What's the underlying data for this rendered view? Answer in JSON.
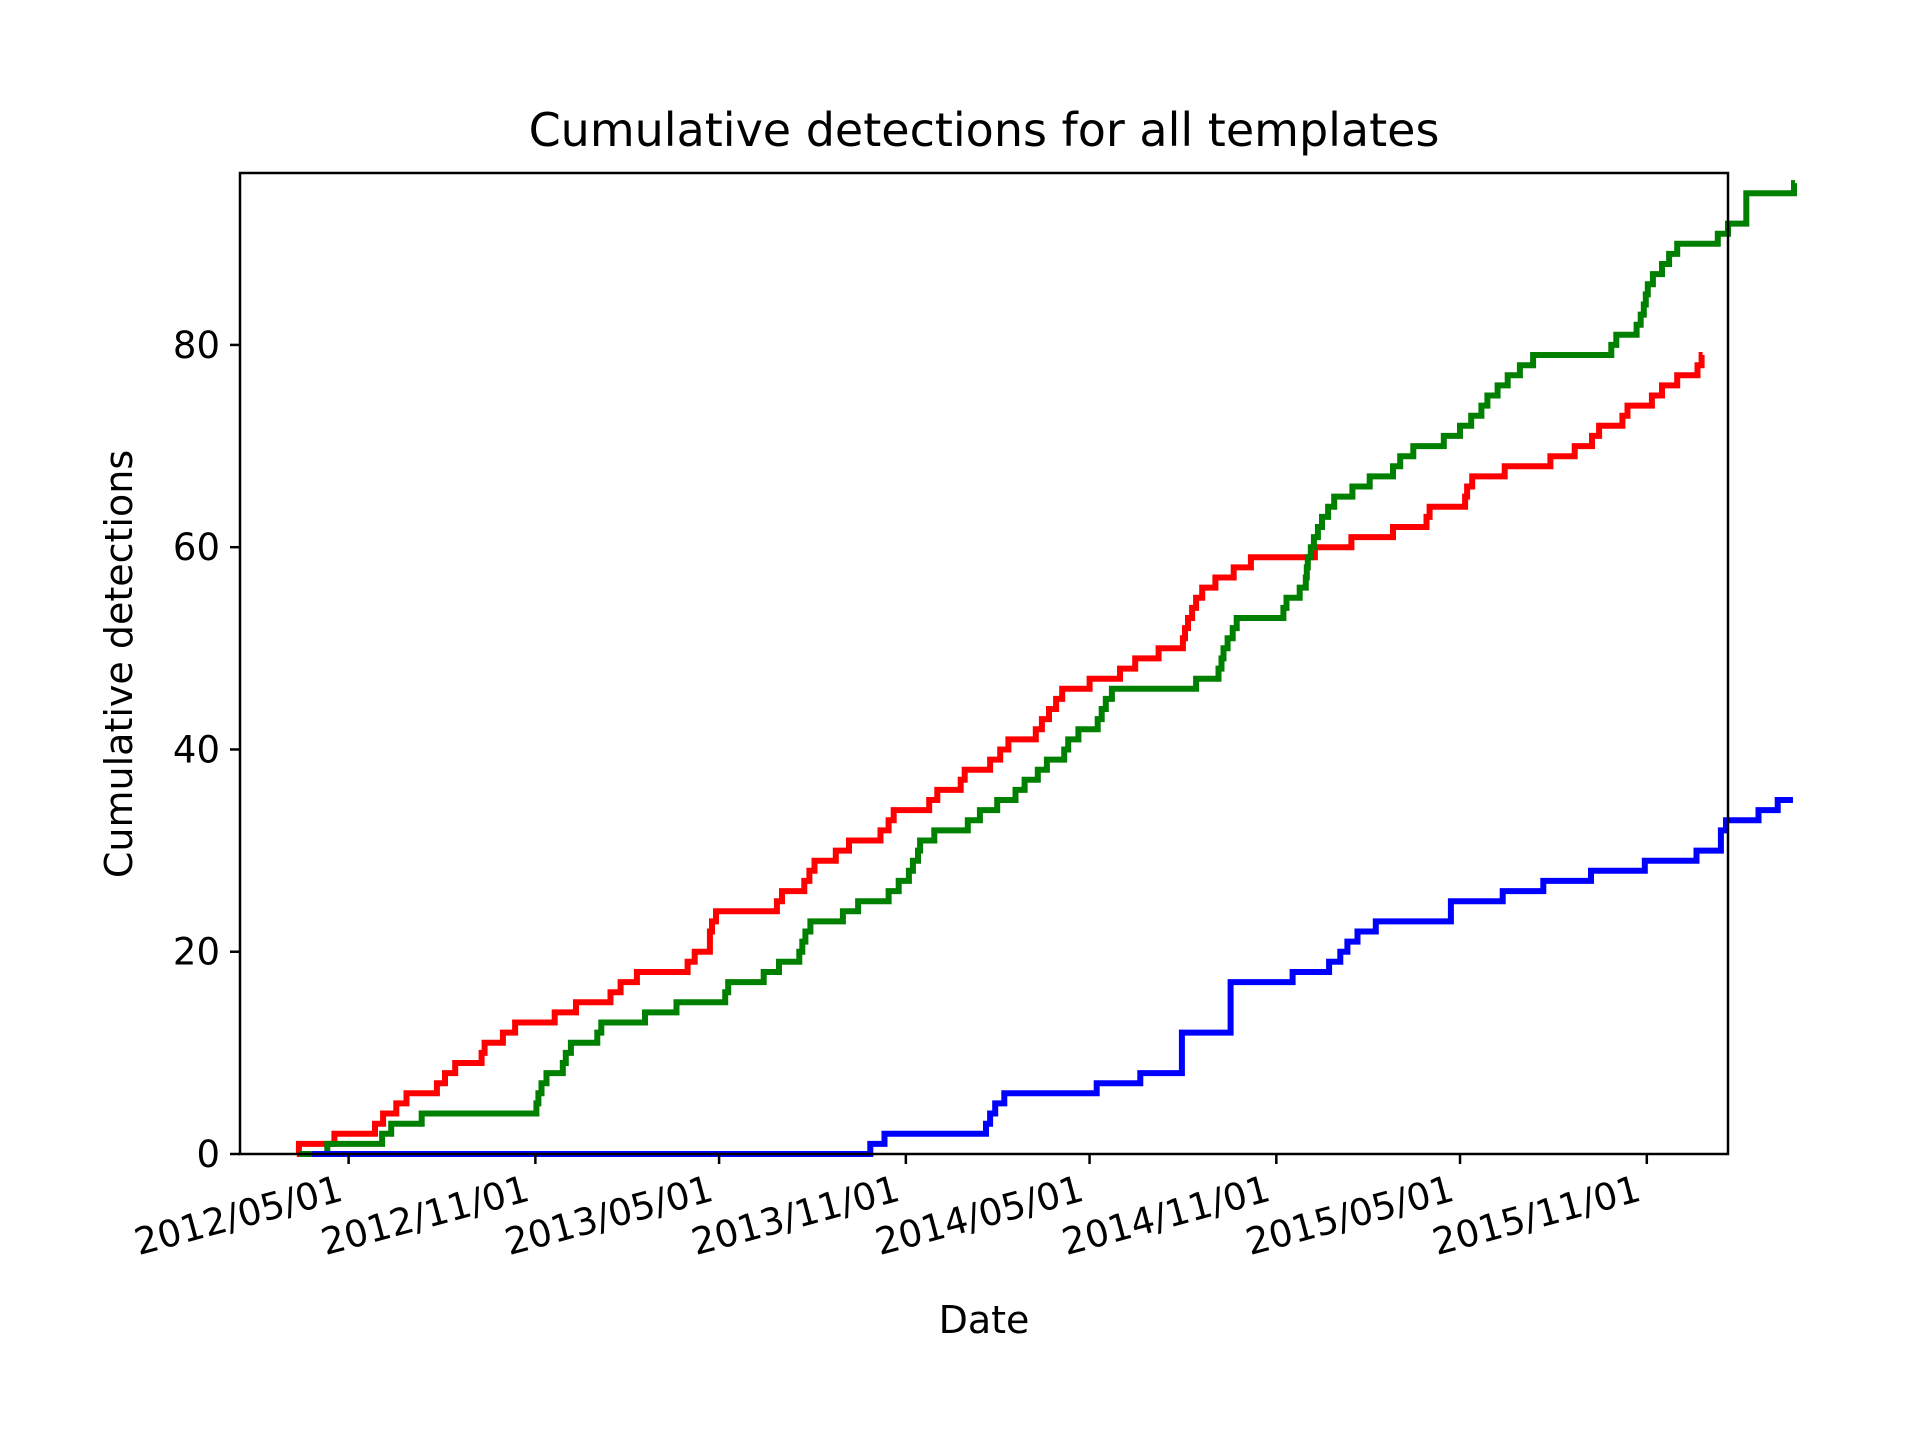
{
  "chart_data": {
    "type": "line",
    "title": "Cumulative detections for all templates",
    "xlabel": "Date",
    "ylabel": "Cumulative detections",
    "x_axis_type": "date",
    "x_tick_labels": [
      "2012/05/01",
      "2012/11/01",
      "2013/05/01",
      "2013/11/01",
      "2014/05/01",
      "2014/11/01",
      "2015/05/01",
      "2015/11/01"
    ],
    "x_ticks": [
      "2012-05-01",
      "2012-11-01",
      "2013-05-01",
      "2013-11-01",
      "2014-05-01",
      "2014-11-01",
      "2015-05-01",
      "2015-11-01"
    ],
    "xlim": [
      "2012-01-15",
      "2016-01-20"
    ],
    "y_ticks": [
      0,
      20,
      40,
      60,
      80
    ],
    "ylim": [
      0,
      97
    ],
    "grid": false,
    "legend": false,
    "step": true,
    "series": [
      {
        "color": "#ff0000",
        "points": [
          [
            "2012-03-11",
            0
          ],
          [
            "2012-03-13",
            1
          ],
          [
            "2012-04-17",
            2
          ],
          [
            "2012-05-27",
            3
          ],
          [
            "2012-06-04",
            4
          ],
          [
            "2012-06-17",
            5
          ],
          [
            "2012-06-27",
            6
          ],
          [
            "2012-07-27",
            7
          ],
          [
            "2012-08-04",
            8
          ],
          [
            "2012-08-14",
            9
          ],
          [
            "2012-09-09",
            10
          ],
          [
            "2012-09-12",
            11
          ],
          [
            "2012-09-30",
            12
          ],
          [
            "2012-10-12",
            13
          ],
          [
            "2012-11-20",
            14
          ],
          [
            "2012-12-11",
            15
          ],
          [
            "2013-01-14",
            16
          ],
          [
            "2013-01-24",
            17
          ],
          [
            "2013-02-09",
            18
          ],
          [
            "2013-03-31",
            19
          ],
          [
            "2013-04-07",
            20
          ],
          [
            "2013-04-22",
            22
          ],
          [
            "2013-04-24",
            23
          ],
          [
            "2013-04-28",
            24
          ],
          [
            "2013-06-27",
            25
          ],
          [
            "2013-07-02",
            26
          ],
          [
            "2013-07-24",
            27
          ],
          [
            "2013-07-29",
            28
          ],
          [
            "2013-08-03",
            29
          ],
          [
            "2013-08-24",
            30
          ],
          [
            "2013-09-06",
            31
          ],
          [
            "2013-10-07",
            32
          ],
          [
            "2013-10-15",
            33
          ],
          [
            "2013-10-20",
            34
          ],
          [
            "2013-11-24",
            35
          ],
          [
            "2013-12-02",
            36
          ],
          [
            "2013-12-25",
            37
          ],
          [
            "2013-12-29",
            38
          ],
          [
            "2014-01-23",
            39
          ],
          [
            "2014-02-02",
            40
          ],
          [
            "2014-02-10",
            41
          ],
          [
            "2014-03-09",
            42
          ],
          [
            "2014-03-15",
            43
          ],
          [
            "2014-03-22",
            44
          ],
          [
            "2014-03-29",
            45
          ],
          [
            "2014-04-04",
            46
          ],
          [
            "2014-05-01",
            47
          ],
          [
            "2014-05-31",
            48
          ],
          [
            "2014-06-15",
            49
          ],
          [
            "2014-07-08",
            50
          ],
          [
            "2014-08-01",
            51
          ],
          [
            "2014-08-03",
            52
          ],
          [
            "2014-08-06",
            53
          ],
          [
            "2014-08-10",
            54
          ],
          [
            "2014-08-14",
            55
          ],
          [
            "2014-08-20",
            56
          ],
          [
            "2014-09-02",
            57
          ],
          [
            "2014-09-20",
            58
          ],
          [
            "2014-10-07",
            59
          ],
          [
            "2014-12-09",
            60
          ],
          [
            "2015-01-14",
            61
          ],
          [
            "2015-02-24",
            62
          ],
          [
            "2015-03-29",
            63
          ],
          [
            "2015-04-01",
            64
          ],
          [
            "2015-05-06",
            65
          ],
          [
            "2015-05-08",
            66
          ],
          [
            "2015-05-13",
            67
          ],
          [
            "2015-06-14",
            68
          ],
          [
            "2015-07-29",
            69
          ],
          [
            "2015-08-22",
            70
          ],
          [
            "2015-09-08",
            71
          ],
          [
            "2015-09-15",
            72
          ],
          [
            "2015-10-08",
            73
          ],
          [
            "2015-10-13",
            74
          ],
          [
            "2015-11-06",
            75
          ],
          [
            "2015-11-16",
            76
          ],
          [
            "2015-12-01",
            77
          ],
          [
            "2015-12-21",
            78
          ],
          [
            "2015-12-25",
            79
          ],
          [
            "2015-12-26",
            79
          ]
        ]
      },
      {
        "color": "#008000",
        "points": [
          [
            "2012-03-13",
            0
          ],
          [
            "2012-04-10",
            1
          ],
          [
            "2012-06-03",
            2
          ],
          [
            "2012-06-12",
            3
          ],
          [
            "2012-07-12",
            4
          ],
          [
            "2012-11-02",
            5
          ],
          [
            "2012-11-04",
            6
          ],
          [
            "2012-11-07",
            7
          ],
          [
            "2012-11-12",
            8
          ],
          [
            "2012-11-28",
            9
          ],
          [
            "2012-12-01",
            10
          ],
          [
            "2012-12-06",
            11
          ],
          [
            "2013-01-01",
            12
          ],
          [
            "2013-01-05",
            13
          ],
          [
            "2013-02-17",
            14
          ],
          [
            "2013-03-20",
            15
          ],
          [
            "2013-05-07",
            16
          ],
          [
            "2013-05-10",
            17
          ],
          [
            "2013-06-14",
            18
          ],
          [
            "2013-06-29",
            19
          ],
          [
            "2013-07-19",
            20
          ],
          [
            "2013-07-22",
            21
          ],
          [
            "2013-07-25",
            22
          ],
          [
            "2013-07-30",
            23
          ],
          [
            "2013-08-31",
            24
          ],
          [
            "2013-09-15",
            25
          ],
          [
            "2013-10-15",
            26
          ],
          [
            "2013-10-25",
            27
          ],
          [
            "2013-11-04",
            28
          ],
          [
            "2013-11-08",
            29
          ],
          [
            "2013-11-13",
            30
          ],
          [
            "2013-11-15",
            31
          ],
          [
            "2013-11-29",
            32
          ],
          [
            "2014-01-01",
            33
          ],
          [
            "2014-01-13",
            34
          ],
          [
            "2014-01-30",
            35
          ],
          [
            "2014-02-17",
            36
          ],
          [
            "2014-02-26",
            37
          ],
          [
            "2014-03-11",
            38
          ],
          [
            "2014-03-20",
            39
          ],
          [
            "2014-04-06",
            40
          ],
          [
            "2014-04-10",
            41
          ],
          [
            "2014-04-20",
            42
          ],
          [
            "2014-05-09",
            43
          ],
          [
            "2014-05-13",
            44
          ],
          [
            "2014-05-17",
            45
          ],
          [
            "2014-05-23",
            46
          ],
          [
            "2014-08-14",
            47
          ],
          [
            "2014-09-05",
            48
          ],
          [
            "2014-09-08",
            49
          ],
          [
            "2014-09-10",
            50
          ],
          [
            "2014-09-14",
            51
          ],
          [
            "2014-09-19",
            52
          ],
          [
            "2014-09-23",
            53
          ],
          [
            "2014-11-08",
            54
          ],
          [
            "2014-11-11",
            55
          ],
          [
            "2014-11-24",
            56
          ],
          [
            "2014-11-30",
            57
          ],
          [
            "2014-12-01",
            58
          ],
          [
            "2014-12-02",
            59
          ],
          [
            "2014-12-05",
            60
          ],
          [
            "2014-12-08",
            61
          ],
          [
            "2014-12-12",
            62
          ],
          [
            "2014-12-16",
            63
          ],
          [
            "2014-12-22",
            64
          ],
          [
            "2014-12-28",
            65
          ],
          [
            "2015-01-15",
            66
          ],
          [
            "2015-02-01",
            67
          ],
          [
            "2015-02-24",
            68
          ],
          [
            "2015-03-03",
            69
          ],
          [
            "2015-03-16",
            70
          ],
          [
            "2015-04-15",
            71
          ],
          [
            "2015-05-01",
            72
          ],
          [
            "2015-05-12",
            73
          ],
          [
            "2015-05-22",
            74
          ],
          [
            "2015-05-28",
            75
          ],
          [
            "2015-06-07",
            76
          ],
          [
            "2015-06-17",
            77
          ],
          [
            "2015-06-29",
            78
          ],
          [
            "2015-07-12",
            79
          ],
          [
            "2015-09-27",
            80
          ],
          [
            "2015-10-02",
            81
          ],
          [
            "2015-10-22",
            82
          ],
          [
            "2015-10-26",
            83
          ],
          [
            "2015-10-29",
            84
          ],
          [
            "2015-10-31",
            85
          ],
          [
            "2015-11-02",
            86
          ],
          [
            "2015-11-07",
            87
          ],
          [
            "2015-11-16",
            88
          ],
          [
            "2015-11-23",
            89
          ],
          [
            "2015-12-01",
            90
          ],
          [
            "2016-01-10",
            91
          ],
          [
            "2016-01-20",
            92
          ],
          [
            "2016-02-07",
            95
          ],
          [
            "2016-03-25",
            96
          ],
          [
            "2016-03-26",
            96
          ]
        ]
      },
      {
        "color": "#0000ff",
        "points": [
          [
            "2012-03-26",
            0
          ],
          [
            "2013-09-27",
            1
          ],
          [
            "2013-10-11",
            2
          ],
          [
            "2014-01-19",
            3
          ],
          [
            "2014-01-23",
            4
          ],
          [
            "2014-01-28",
            5
          ],
          [
            "2014-02-06",
            6
          ],
          [
            "2014-05-08",
            7
          ],
          [
            "2014-06-20",
            8
          ],
          [
            "2014-07-31",
            12
          ],
          [
            "2014-09-17",
            17
          ],
          [
            "2014-11-17",
            18
          ],
          [
            "2014-12-23",
            19
          ],
          [
            "2015-01-03",
            20
          ],
          [
            "2015-01-10",
            21
          ],
          [
            "2015-01-20",
            22
          ],
          [
            "2015-02-07",
            23
          ],
          [
            "2015-04-22",
            25
          ],
          [
            "2015-06-12",
            26
          ],
          [
            "2015-07-22",
            27
          ],
          [
            "2015-09-07",
            28
          ],
          [
            "2015-10-30",
            29
          ],
          [
            "2015-12-20",
            30
          ],
          [
            "2016-01-13",
            32
          ],
          [
            "2016-01-18",
            33
          ],
          [
            "2016-02-19",
            34
          ],
          [
            "2016-03-09",
            35
          ],
          [
            "2016-03-24",
            35
          ]
        ]
      }
    ]
  }
}
